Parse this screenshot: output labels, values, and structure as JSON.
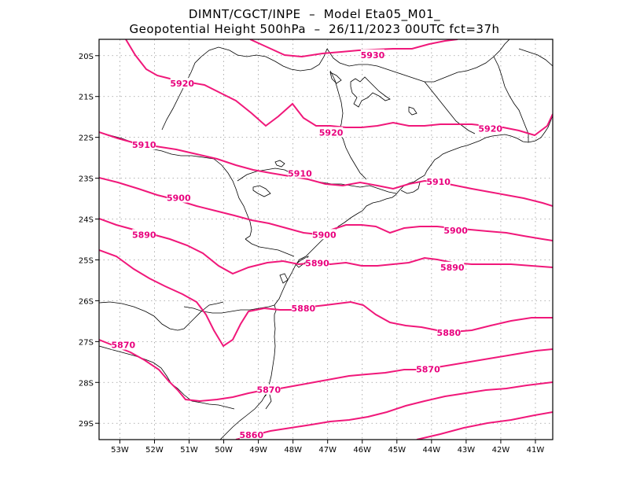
{
  "title": {
    "line1": "DIMNT/CGCT/INPE  –  Model Eta05_M01_",
    "line2": "Geopotential Height 500hPa  –  26/11/2023 00UTC fct=37h"
  },
  "axes": {
    "lon_ticks": [
      "53W",
      "52W",
      "51W",
      "50W",
      "49W",
      "48W",
      "47W",
      "46W",
      "45W",
      "44W",
      "43W",
      "42W",
      "41W"
    ],
    "lat_ticks": [
      "20S",
      "21S",
      "22S",
      "23S",
      "24S",
      "25S",
      "26S",
      "27S",
      "28S",
      "29S"
    ]
  },
  "colors": {
    "contour": "#f0187a",
    "label": "#e8007d",
    "border": "#000000",
    "grid": "#9a9a9a"
  },
  "contour_labels": [
    {
      "text": "5930",
      "lon": -45.7,
      "lat": -20.0
    },
    {
      "text": "5920",
      "lon": -51.2,
      "lat": -20.7
    },
    {
      "text": "5920",
      "lon": -46.9,
      "lat": -21.9
    },
    {
      "text": "5920",
      "lon": -42.3,
      "lat": -21.8
    },
    {
      "text": "5910",
      "lon": -52.3,
      "lat": -22.2
    },
    {
      "text": "5910",
      "lon": -47.8,
      "lat": -22.9
    },
    {
      "text": "5910",
      "lon": -43.8,
      "lat": -23.1
    },
    {
      "text": "5900",
      "lon": -51.3,
      "lat": -23.5
    },
    {
      "text": "5900",
      "lon": -47.1,
      "lat": -24.4
    },
    {
      "text": "5900",
      "lon": -43.3,
      "lat": -24.3
    },
    {
      "text": "5890",
      "lon": -52.3,
      "lat": -24.4
    },
    {
      "text": "5890",
      "lon": -47.3,
      "lat": -25.1
    },
    {
      "text": "5890",
      "lon": -43.4,
      "lat": -25.2
    },
    {
      "text": "5880",
      "lon": -47.7,
      "lat": -26.2
    },
    {
      "text": "5880",
      "lon": -43.5,
      "lat": -26.8
    },
    {
      "text": "5870",
      "lon": -52.9,
      "lat": -27.1
    },
    {
      "text": "5870",
      "lon": -44.1,
      "lat": -27.7
    },
    {
      "text": "5870",
      "lon": -48.7,
      "lat": -28.2
    },
    {
      "text": "5860",
      "lon": -49.2,
      "lat": -29.3
    }
  ]
}
